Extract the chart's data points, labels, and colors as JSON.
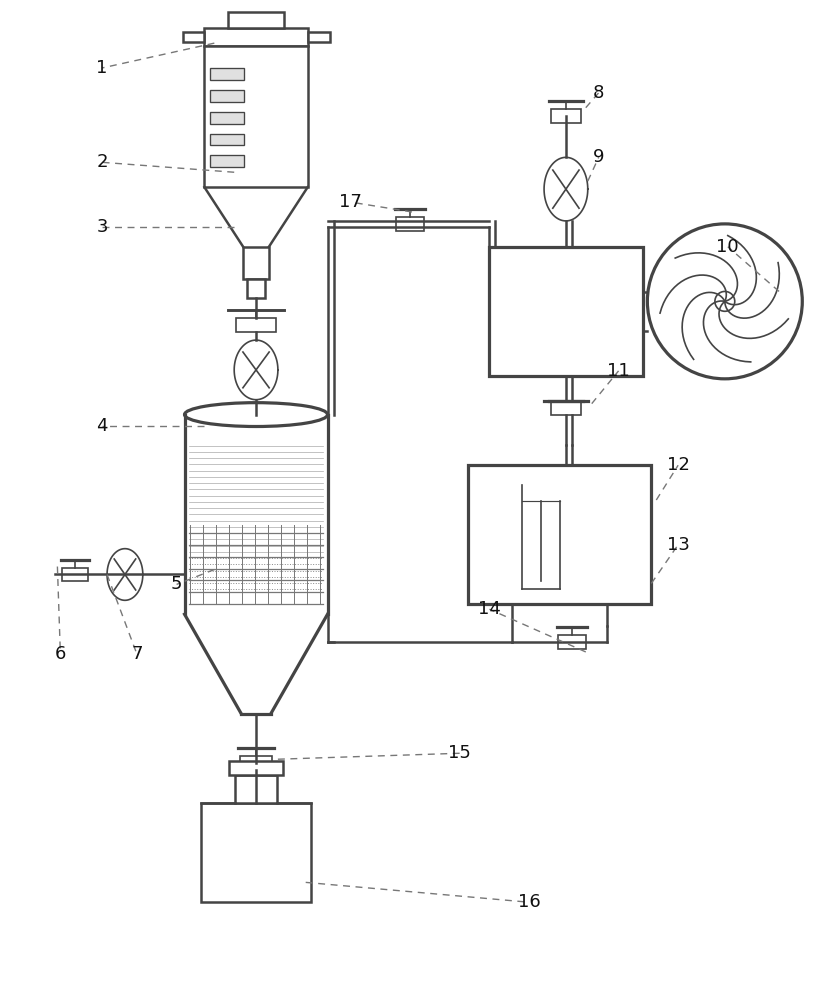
{
  "background_color": "#ffffff",
  "line_color": "#555555",
  "fig_width": 8.16,
  "fig_height": 10.0
}
